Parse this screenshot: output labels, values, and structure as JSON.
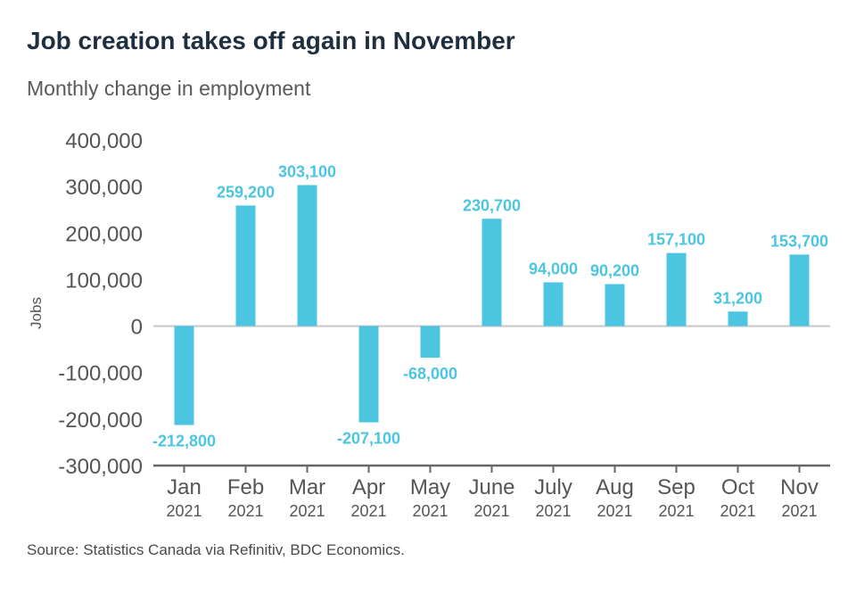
{
  "title": "Job creation takes off again in November",
  "subtitle": "Monthly change in employment",
  "source": "Source: Statistics Canada via Refinitiv, BDC Economics.",
  "colors": {
    "bar": "#4cc5e0",
    "label": "#4cc5e0",
    "axis": "#666666",
    "zero_line": "#c8c8c8"
  },
  "chart_data": {
    "type": "bar",
    "categories": [
      "Jan",
      "Feb",
      "Mar",
      "Apr",
      "May",
      "June",
      "July",
      "Aug",
      "Sep",
      "Oct",
      "Nov"
    ],
    "category_years": [
      "2021",
      "2021",
      "2021",
      "2021",
      "2021",
      "2021",
      "2021",
      "2021",
      "2021",
      "2021",
      "2021"
    ],
    "values": [
      -212800,
      259200,
      303100,
      -207100,
      -68000,
      230700,
      94000,
      90200,
      157100,
      31200,
      153700
    ],
    "data_labels": [
      "-212,800",
      "259,200",
      "303,100",
      "-207,100",
      "-68,000",
      "230,700",
      "94,000",
      "90,200",
      "157,100",
      "31,200",
      "153,700"
    ],
    "ylabel": "Jobs",
    "ylim": [
      -300000,
      400000
    ],
    "yticks": [
      400000,
      300000,
      200000,
      100000,
      0,
      -100000,
      -200000,
      -300000
    ],
    "ytick_labels": [
      "400,000",
      "300,000",
      "200,000",
      "100,000",
      "0",
      "-100,000",
      "-200,000",
      "-300,000"
    ],
    "grid": false,
    "legend": "none"
  }
}
